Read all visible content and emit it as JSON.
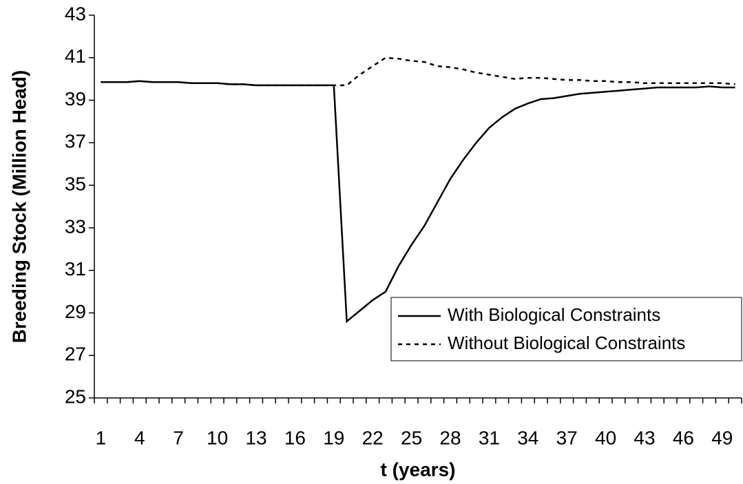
{
  "chart_data": {
    "type": "line",
    "x_label": "t (years)",
    "y_label": "Breeding Stock (Million Head)",
    "categories": [
      1,
      null,
      null,
      4,
      null,
      null,
      7,
      null,
      null,
      10,
      null,
      null,
      13,
      null,
      null,
      16,
      null,
      null,
      19,
      null,
      null,
      22,
      null,
      null,
      25,
      null,
      null,
      28,
      null,
      null,
      31,
      null,
      null,
      34,
      null,
      null,
      37,
      null,
      null,
      40,
      null,
      null,
      43,
      null,
      null,
      46,
      null,
      null,
      49,
      null
    ],
    "ylim": [
      25,
      43
    ],
    "yticks": [
      25,
      27,
      29,
      31,
      33,
      35,
      37,
      39,
      41,
      43
    ],
    "grid": false,
    "legend": "lower-right",
    "series": [
      {
        "name": "With Biological Constraints",
        "color": "#000000",
        "dash": "solid",
        "values": [
          39.85,
          39.85,
          39.85,
          39.9,
          39.85,
          39.85,
          39.85,
          39.8,
          39.8,
          39.8,
          39.75,
          39.75,
          39.7,
          39.7,
          39.7,
          39.7,
          39.7,
          39.7,
          39.7,
          28.6,
          29.1,
          29.6,
          30.0,
          31.2,
          32.2,
          33.1,
          34.2,
          35.3,
          36.2,
          37.0,
          37.7,
          38.2,
          38.6,
          38.85,
          39.05,
          39.1,
          39.2,
          39.3,
          39.35,
          39.4,
          39.45,
          39.5,
          39.55,
          39.6,
          39.6,
          39.6,
          39.6,
          39.65,
          39.6,
          39.6
        ]
      },
      {
        "name": "Without Biological Constraints",
        "color": "#000000",
        "dash": "dotted",
        "values": [
          39.85,
          39.85,
          39.85,
          39.9,
          39.85,
          39.85,
          39.85,
          39.8,
          39.8,
          39.8,
          39.75,
          39.75,
          39.7,
          39.7,
          39.7,
          39.7,
          39.7,
          39.7,
          39.7,
          39.7,
          40.2,
          40.6,
          41.0,
          40.95,
          40.85,
          40.8,
          40.6,
          40.55,
          40.45,
          40.3,
          40.2,
          40.1,
          40.0,
          40.05,
          40.05,
          40.0,
          39.95,
          39.95,
          39.9,
          39.9,
          39.85,
          39.85,
          39.8,
          39.8,
          39.8,
          39.8,
          39.8,
          39.8,
          39.8,
          39.75
        ]
      }
    ]
  }
}
